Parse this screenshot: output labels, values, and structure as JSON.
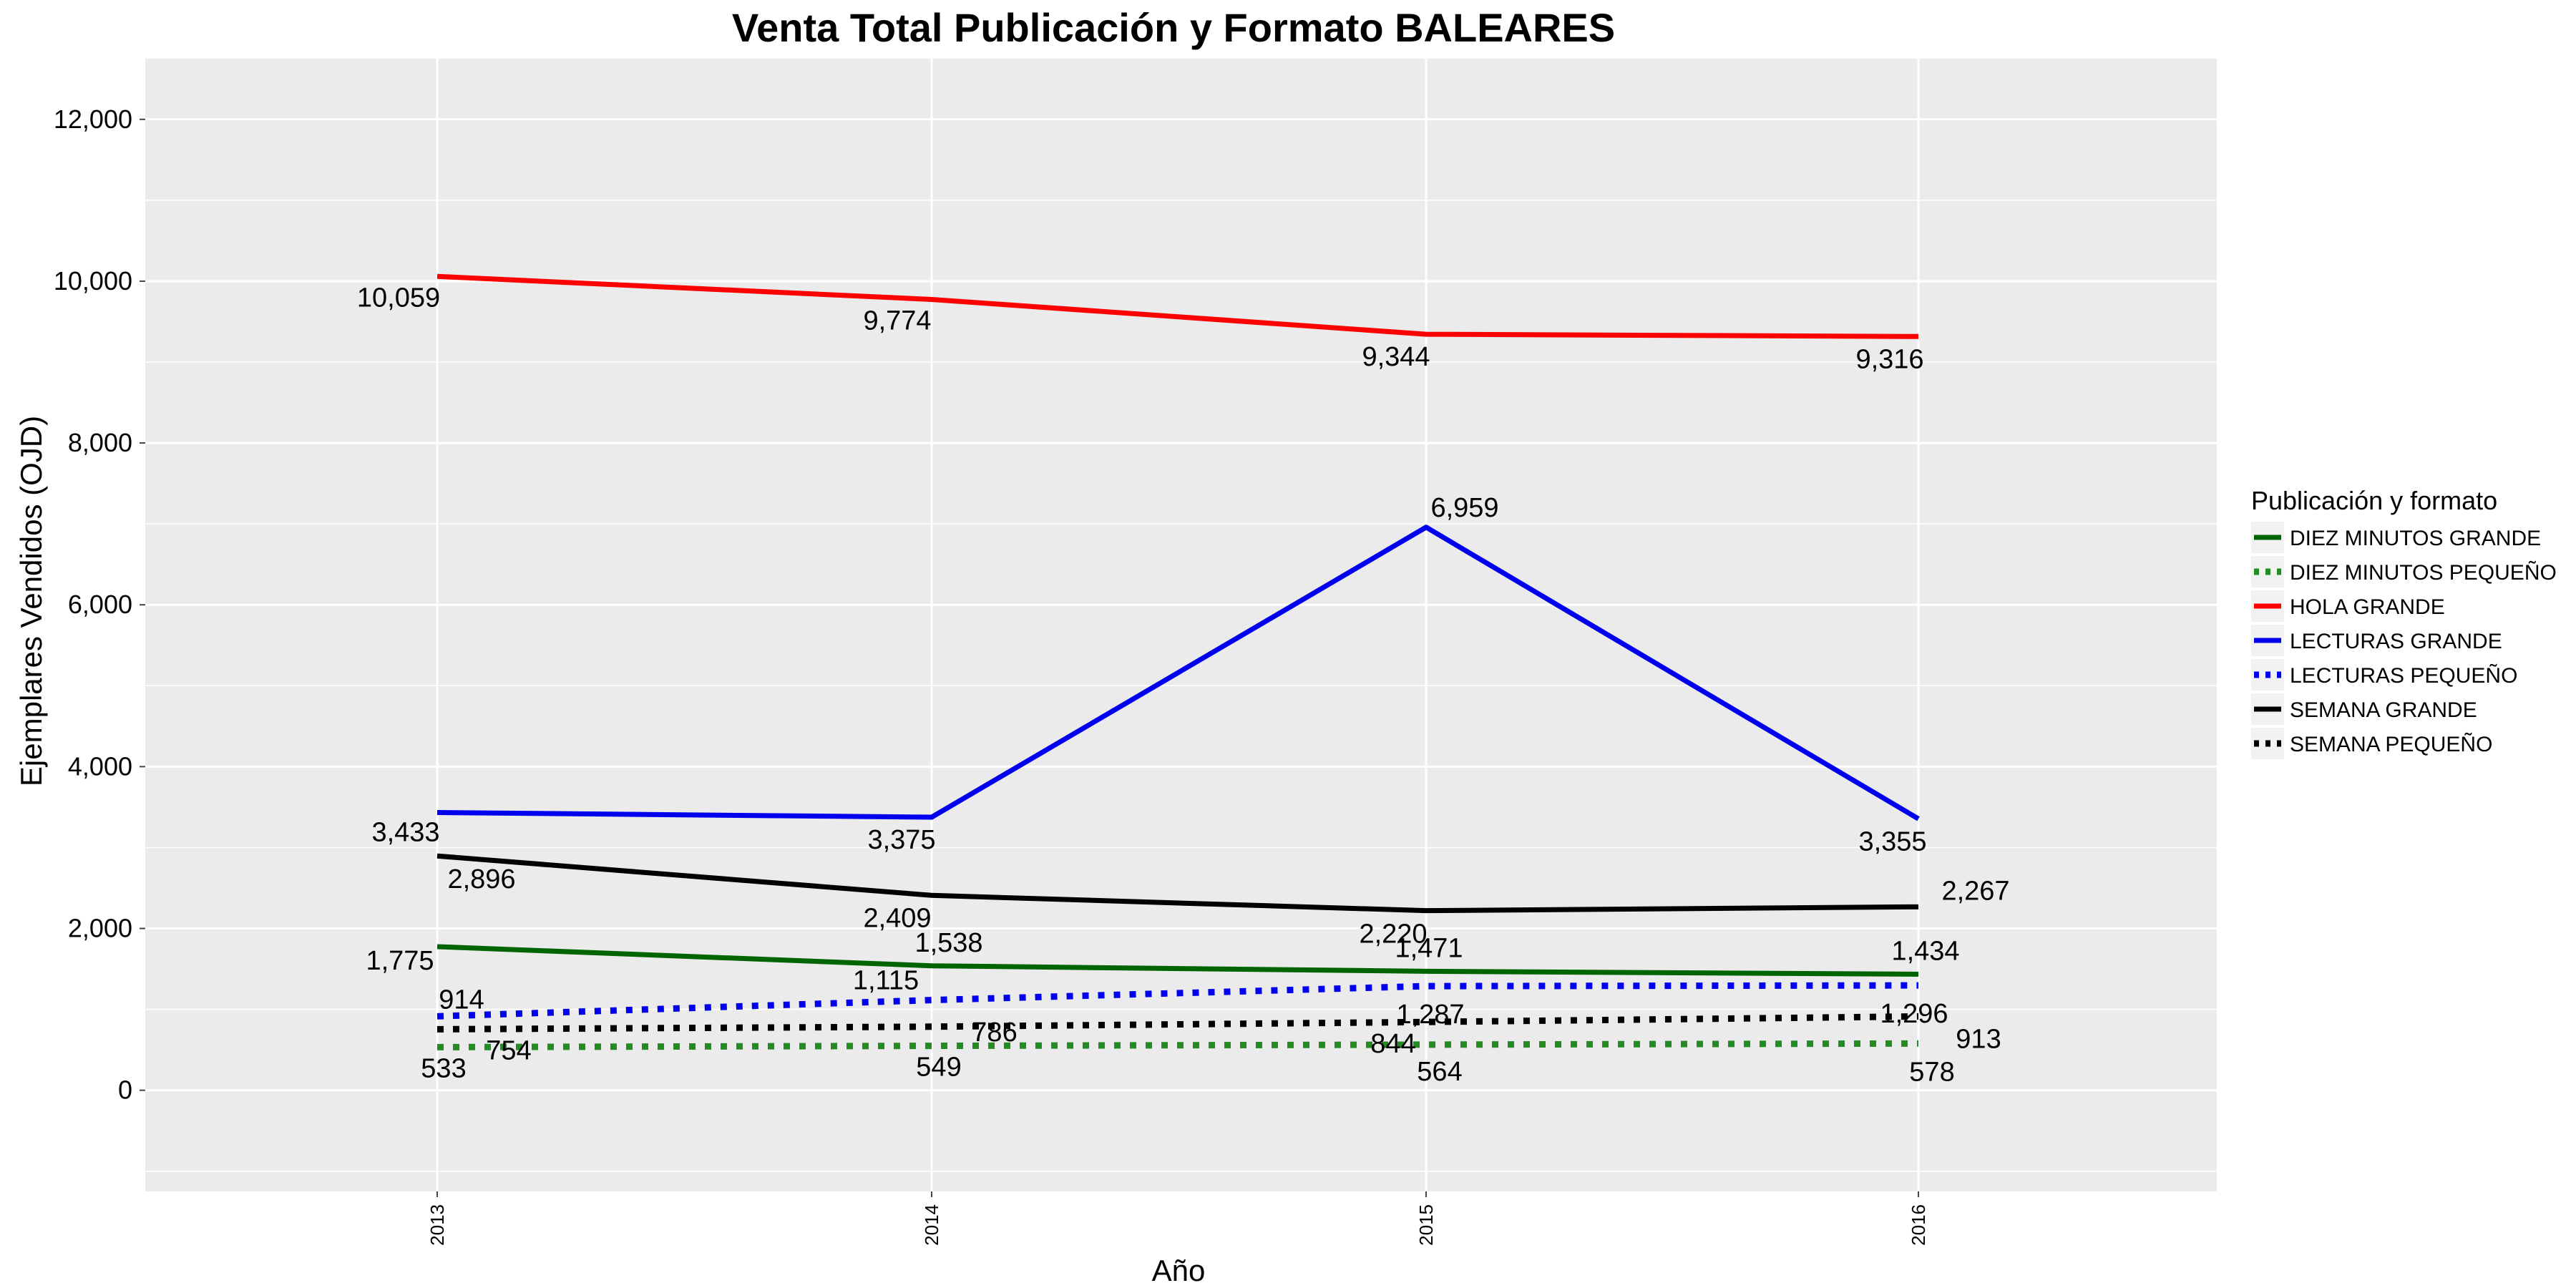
{
  "chart_data": {
    "type": "line",
    "title": "Venta Total Publicación y Formato  BALEARES",
    "xlabel": "Año",
    "ylabel": "Ejemplares Vendidos (OJD)",
    "x": [
      "2013",
      "2014",
      "2015",
      "2016"
    ],
    "ylim": [
      -1250,
      12750
    ],
    "yticks": [
      0,
      2000,
      4000,
      6000,
      8000,
      10000,
      12000
    ],
    "ytick_labels": [
      "0",
      "2,000",
      "4,000",
      "6,000",
      "8,000",
      "10,000",
      "12,000"
    ],
    "grid": true,
    "legend": {
      "title": "Publicación y formato",
      "position": "right"
    },
    "series": [
      {
        "name": "DIEZ MINUTOS GRANDE",
        "color": "#006400",
        "style": "solid",
        "values": [
          1775,
          1538,
          1471,
          1434
        ],
        "labels": [
          "1,775",
          "1,538",
          "1,471",
          "1,434"
        ]
      },
      {
        "name": "DIEZ MINUTOS PEQUEÑO",
        "color": "#228B22",
        "style": "dotted",
        "values": [
          533,
          549,
          564,
          578
        ],
        "labels": [
          "533",
          "549",
          "564",
          "578"
        ]
      },
      {
        "name": "HOLA GRANDE",
        "color": "#FF0000",
        "style": "solid",
        "values": [
          10059,
          9774,
          9344,
          9316
        ],
        "labels": [
          "10,059",
          "9,774",
          "9,344",
          "9,316"
        ]
      },
      {
        "name": "LECTURAS GRANDE",
        "color": "#0000EE",
        "style": "solid",
        "values": [
          3433,
          3375,
          6959,
          3355
        ],
        "labels": [
          "3,433",
          "3,375",
          "6,959",
          "3,355"
        ]
      },
      {
        "name": "LECTURAS PEQUEÑO",
        "color": "#0000EE",
        "style": "dotted",
        "values": [
          914,
          1115,
          1287,
          1296
        ],
        "labels": [
          "914",
          "1,115",
          "1,287",
          "1,296"
        ]
      },
      {
        "name": "SEMANA GRANDE",
        "color": "#000000",
        "style": "solid",
        "values": [
          2896,
          2409,
          2220,
          2267
        ],
        "labels": [
          "2,896",
          "2,409",
          "2,220",
          "2,267"
        ]
      },
      {
        "name": "SEMANA PEQUEÑO",
        "color": "#000000",
        "style": "dotted",
        "values": [
          754,
          786,
          844,
          913
        ],
        "labels": [
          "754",
          "786",
          "844",
          "913"
        ]
      }
    ]
  }
}
